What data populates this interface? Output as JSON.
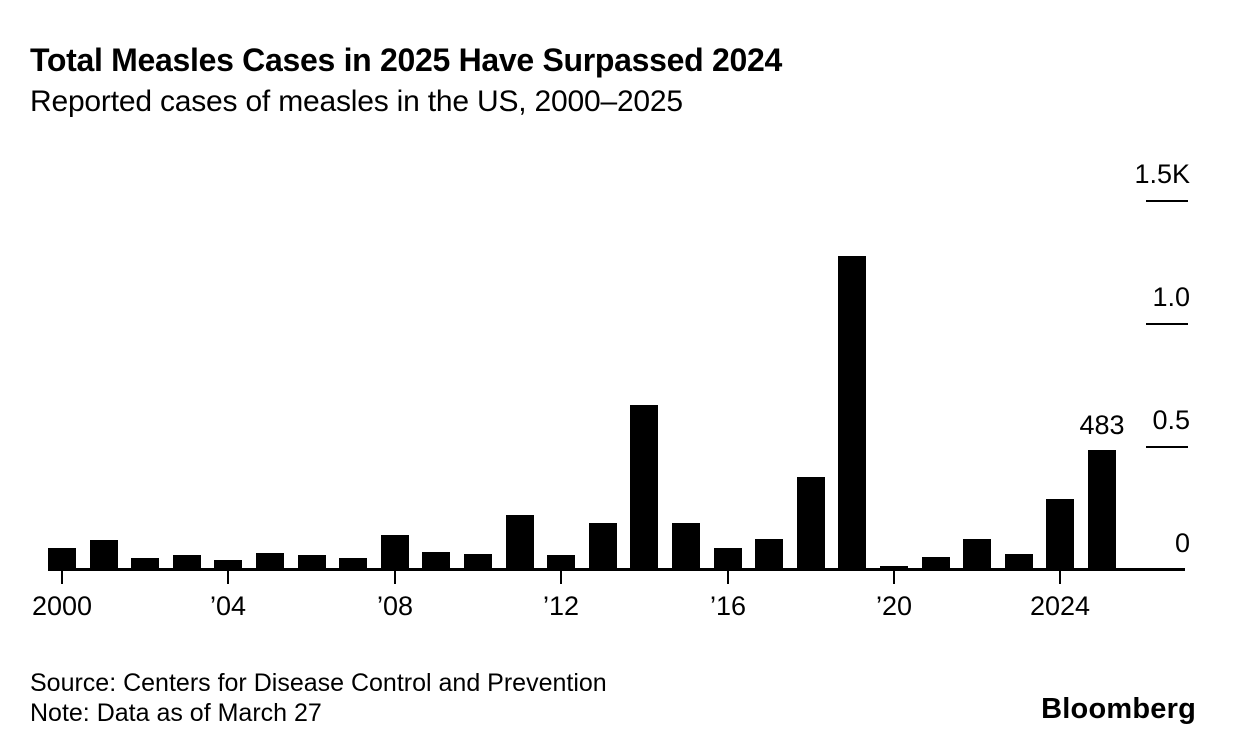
{
  "chart_data": {
    "type": "bar",
    "title": "Total Measles Cases in 2025 Have Surpassed 2024",
    "subtitle": "Reported cases of measles in the US, 2000–2025",
    "xlabel": "",
    "ylabel": "",
    "ylim": [
      0,
      1500
    ],
    "grid": false,
    "legend": "none",
    "value_axis_side": "right",
    "bar_color": "#000000",
    "background_color": "#ffffff",
    "categories": [
      2000,
      2001,
      2002,
      2003,
      2004,
      2005,
      2006,
      2007,
      2008,
      2009,
      2010,
      2011,
      2012,
      2013,
      2014,
      2015,
      2016,
      2017,
      2018,
      2019,
      2020,
      2021,
      2022,
      2023,
      2024,
      2025
    ],
    "values": [
      86,
      116,
      44,
      56,
      37,
      66,
      55,
      43,
      140,
      71,
      63,
      220,
      55,
      187,
      667,
      188,
      86,
      120,
      375,
      1274,
      13,
      49,
      121,
      59,
      285,
      483
    ],
    "x_ticks": [
      {
        "year": 2000,
        "label": "2000"
      },
      {
        "year": 2004,
        "label": "’04"
      },
      {
        "year": 2008,
        "label": "’08"
      },
      {
        "year": 2012,
        "label": "’12"
      },
      {
        "year": 2016,
        "label": "’16"
      },
      {
        "year": 2020,
        "label": "’20"
      },
      {
        "year": 2024,
        "label": "2024"
      }
    ],
    "y_ticks": [
      {
        "value": 0,
        "label": "0"
      },
      {
        "value": 500,
        "label": "0.5"
      },
      {
        "value": 1000,
        "label": "1.0"
      },
      {
        "value": 1500,
        "label": "1.5K"
      }
    ],
    "annotation": {
      "year": 2025,
      "text": "483"
    }
  },
  "footer": {
    "source": "Source: Centers for Disease Control and Prevention",
    "note": "Note: Data as of March 27",
    "logo": "Bloomberg"
  }
}
